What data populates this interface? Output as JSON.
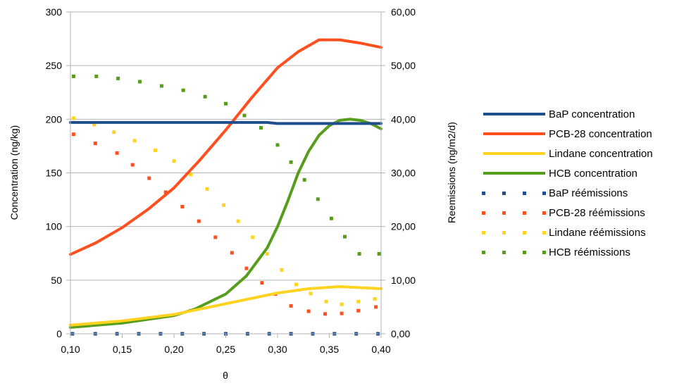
{
  "chart_data": {
    "type": "line",
    "title": "",
    "xlabel": "θ",
    "ylabel_left": "Concentration (ng/kg)",
    "ylabel_right": "Reemissions (ng/m2/d)",
    "xlim": [
      0.1,
      0.4
    ],
    "ylim_left": [
      0,
      300
    ],
    "ylim_right": [
      0,
      60
    ],
    "x_ticks": [
      "0,10",
      "0,15",
      "0,20",
      "0,25",
      "0,30",
      "0,35",
      "0,40"
    ],
    "x_tick_values": [
      0.1,
      0.15,
      0.2,
      0.25,
      0.3,
      0.35,
      0.4
    ],
    "y_left_ticks": [
      "0",
      "50",
      "100",
      "150",
      "200",
      "250",
      "300"
    ],
    "y_left_tick_values": [
      0,
      50,
      100,
      150,
      200,
      250,
      300
    ],
    "y_right_ticks": [
      "0,00",
      "10,00",
      "20,00",
      "30,00",
      "40,00",
      "50,00",
      "60,00"
    ],
    "y_right_tick_values": [
      0,
      10,
      20,
      30,
      40,
      50,
      60
    ],
    "grid": "horizontal",
    "legend_position": "right",
    "series": [
      {
        "name": "BaP concentration",
        "axis": "left",
        "style": "line",
        "color": "#1f4e8c",
        "x": [
          0.1,
          0.15,
          0.2,
          0.25,
          0.29,
          0.3,
          0.35,
          0.4
        ],
        "values": [
          197,
          197,
          197,
          197,
          197,
          196,
          196,
          196
        ]
      },
      {
        "name": "PCB-28 concentration",
        "axis": "left",
        "style": "line",
        "color": "#ff4f1f",
        "x": [
          0.1,
          0.125,
          0.15,
          0.175,
          0.2,
          0.225,
          0.25,
          0.275,
          0.3,
          0.32,
          0.34,
          0.36,
          0.38,
          0.4
        ],
        "values": [
          74,
          85,
          99,
          116,
          136,
          162,
          190,
          220,
          248,
          263,
          274,
          274,
          271,
          267
        ]
      },
      {
        "name": "Lindane concentration",
        "axis": "left",
        "style": "line",
        "color": "#ffd320",
        "x": [
          0.1,
          0.15,
          0.2,
          0.25,
          0.3,
          0.33,
          0.36,
          0.38,
          0.4
        ],
        "values": [
          8,
          12,
          18,
          28,
          38,
          42,
          44,
          43,
          42
        ]
      },
      {
        "name": "HCB concentration",
        "axis": "left",
        "style": "line",
        "color": "#579d1c",
        "x": [
          0.1,
          0.15,
          0.2,
          0.22,
          0.25,
          0.27,
          0.29,
          0.3,
          0.31,
          0.32,
          0.33,
          0.34,
          0.35,
          0.36,
          0.37,
          0.38,
          0.39,
          0.4
        ],
        "values": [
          6,
          10,
          17,
          23,
          37,
          54,
          80,
          100,
          124,
          150,
          170,
          185,
          194,
          199,
          200,
          199,
          196,
          191
        ]
      },
      {
        "name": "BaP réémissions",
        "axis": "right",
        "style": "dots",
        "color": "#1f4e8c",
        "x": [
          0.102,
          0.124,
          0.145,
          0.166,
          0.187,
          0.208,
          0.229,
          0.25,
          0.271,
          0.292,
          0.313,
          0.334,
          0.355,
          0.376,
          0.397
        ],
        "values": [
          0,
          0,
          0,
          0,
          0,
          0,
          0,
          0,
          0,
          0,
          0,
          0,
          0,
          0,
          0
        ]
      },
      {
        "name": "PCB-28 réémissions",
        "axis": "right",
        "style": "dots",
        "color": "#ff4f1f",
        "x": [
          0.103,
          0.124,
          0.145,
          0.16,
          0.176,
          0.192,
          0.208,
          0.224,
          0.24,
          0.256,
          0.27,
          0.285,
          0.298,
          0.313,
          0.33,
          0.346,
          0.362,
          0.378,
          0.395
        ],
        "values": [
          37.2,
          35.5,
          33.7,
          31.5,
          29.0,
          26.4,
          23.7,
          21.0,
          18.0,
          15.1,
          12.2,
          9.5,
          7.4,
          5.2,
          4.2,
          3.7,
          3.8,
          4.3,
          5.0
        ]
      },
      {
        "name": "Lindane réémissions",
        "axis": "right",
        "style": "dots",
        "color": "#ffd320",
        "x": [
          0.103,
          0.123,
          0.142,
          0.162,
          0.182,
          0.2,
          0.216,
          0.232,
          0.248,
          0.262,
          0.276,
          0.29,
          0.304,
          0.318,
          0.332,
          0.347,
          0.362,
          0.378,
          0.394
        ],
        "values": [
          40.2,
          39.0,
          37.6,
          36.0,
          34.2,
          32.2,
          29.7,
          27.0,
          24.0,
          21.0,
          18.0,
          14.9,
          11.9,
          9.2,
          7.5,
          6.0,
          5.5,
          6.0,
          6.5
        ]
      },
      {
        "name": "HCB réémissions",
        "axis": "right",
        "style": "dots",
        "color": "#579d1c",
        "x": [
          0.103,
          0.125,
          0.146,
          0.167,
          0.188,
          0.209,
          0.23,
          0.25,
          0.268,
          0.284,
          0.3,
          0.313,
          0.326,
          0.339,
          0.352,
          0.365,
          0.379,
          0.398
        ],
        "values": [
          48.0,
          48.0,
          47.6,
          47.0,
          46.2,
          45.4,
          44.2,
          42.9,
          40.7,
          38.4,
          35.2,
          32.0,
          28.7,
          25.1,
          21.5,
          18.1,
          14.9,
          14.9
        ]
      }
    ]
  }
}
